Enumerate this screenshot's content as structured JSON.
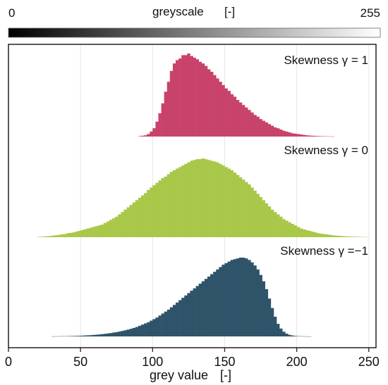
{
  "chart_data": {
    "type": "bar",
    "colorbar": {
      "title": "greyscale",
      "unit": "[-]",
      "min_label": "0",
      "max_label": "255",
      "range": [
        0,
        255
      ]
    },
    "xlabel": "grey value",
    "xunit": "[-]",
    "xlim": [
      0,
      255
    ],
    "xticks": [
      0,
      50,
      100,
      150,
      200,
      250
    ],
    "grid": "vertical",
    "series": [
      {
        "name": "Skewness γ = 1",
        "skewness": 1,
        "color": "#c8436a",
        "bin_width": 2,
        "x": [
          90,
          92,
          94,
          96,
          98,
          100,
          102,
          104,
          106,
          108,
          110,
          112,
          114,
          116,
          118,
          120,
          122,
          124,
          126,
          128,
          130,
          132,
          134,
          136,
          138,
          140,
          142,
          144,
          146,
          148,
          150,
          152,
          154,
          156,
          158,
          160,
          162,
          164,
          166,
          168,
          170,
          172,
          174,
          176,
          178,
          180,
          182,
          184,
          186,
          188,
          190,
          192,
          194,
          196,
          198,
          200,
          202,
          204,
          206,
          208,
          210,
          212,
          214,
          216,
          218,
          220,
          222,
          224
        ],
        "values": [
          0.5,
          1,
          1.5,
          3,
          6,
          10,
          18,
          28,
          40,
          54,
          66,
          79,
          88,
          92,
          94,
          98,
          98,
          100,
          97,
          95,
          93,
          90,
          88,
          85,
          81,
          78,
          74,
          70,
          66,
          62,
          58,
          55,
          51,
          48,
          44,
          41,
          38,
          35,
          32,
          29,
          26,
          24,
          21,
          19,
          17,
          15,
          13,
          11,
          10,
          8.5,
          7,
          6,
          5,
          4,
          3.5,
          3,
          2.5,
          2,
          1.5,
          1.2,
          1,
          0.8,
          0.6,
          0.5,
          0.4,
          0.3,
          0.2,
          0.1
        ]
      },
      {
        "name": "Skewness γ = 0",
        "skewness": 0,
        "color": "#a9c84a",
        "bin_width": 2,
        "x": [
          20,
          22,
          24,
          26,
          28,
          30,
          32,
          34,
          36,
          38,
          40,
          42,
          44,
          46,
          48,
          50,
          52,
          54,
          56,
          58,
          60,
          62,
          64,
          66,
          68,
          70,
          72,
          74,
          76,
          78,
          80,
          82,
          84,
          86,
          88,
          90,
          92,
          94,
          96,
          98,
          100,
          102,
          104,
          106,
          108,
          110,
          112,
          114,
          116,
          118,
          120,
          122,
          124,
          126,
          128,
          130,
          132,
          134,
          136,
          138,
          140,
          142,
          144,
          146,
          148,
          150,
          152,
          154,
          156,
          158,
          160,
          162,
          164,
          166,
          168,
          170,
          172,
          174,
          176,
          178,
          180,
          182,
          184,
          186,
          188,
          190,
          192,
          194,
          196,
          198,
          200,
          202,
          204,
          206,
          208,
          210,
          212,
          214,
          216,
          218,
          220,
          222,
          224,
          226,
          228,
          230,
          232,
          234,
          236,
          238,
          240,
          242,
          244,
          246,
          248
        ],
        "values": [
          0.5,
          0.7,
          1,
          1.2,
          1.5,
          2,
          2.5,
          3,
          3.5,
          4,
          5,
          5.5,
          6,
          7,
          8,
          9,
          10,
          11,
          12,
          13,
          14,
          15,
          16,
          18,
          20,
          22,
          24,
          26,
          29,
          32,
          35,
          38,
          41,
          44,
          47,
          50,
          53,
          56,
          60,
          63,
          66,
          69,
          72,
          75,
          77,
          80,
          83,
          85,
          87,
          89,
          91,
          93,
          95,
          97,
          98,
          99,
          99,
          100,
          99,
          98,
          97,
          96,
          95,
          93,
          91,
          89,
          87,
          85,
          82,
          79,
          76,
          73,
          70,
          67,
          63,
          59,
          55,
          51,
          47,
          43,
          39,
          35,
          32,
          29,
          26,
          23,
          21,
          19,
          17,
          15,
          13,
          11,
          10,
          9,
          8,
          7,
          6,
          5,
          4.5,
          4,
          3.5,
          3,
          2.5,
          2,
          1.8,
          1.5,
          1.2,
          1,
          0.8,
          0.7,
          0.6,
          0.5,
          0.4,
          0.3,
          0.2
        ]
      },
      {
        "name": "Skewness γ =−1",
        "skewness": -1,
        "color": "#2f5469",
        "bin_width": 2,
        "x": [
          30,
          32,
          34,
          36,
          38,
          40,
          42,
          44,
          46,
          48,
          50,
          52,
          54,
          56,
          58,
          60,
          62,
          64,
          66,
          68,
          70,
          72,
          74,
          76,
          78,
          80,
          82,
          84,
          86,
          88,
          90,
          92,
          94,
          96,
          98,
          100,
          102,
          104,
          106,
          108,
          110,
          112,
          114,
          116,
          118,
          120,
          122,
          124,
          126,
          128,
          130,
          132,
          134,
          136,
          138,
          140,
          142,
          144,
          146,
          148,
          150,
          152,
          154,
          156,
          158,
          160,
          162,
          164,
          166,
          168,
          170,
          172,
          174,
          176,
          178,
          180,
          182,
          184,
          186,
          188,
          190,
          192,
          194,
          196,
          198,
          200,
          202,
          204,
          206,
          208
        ],
        "values": [
          0.1,
          0.2,
          0.2,
          0.3,
          0.3,
          0.4,
          0.5,
          0.6,
          0.7,
          0.8,
          1,
          1.2,
          1.4,
          1.6,
          1.9,
          2.2,
          2.5,
          2.9,
          3.3,
          3.8,
          4.3,
          4.9,
          5.5,
          6.2,
          7,
          7.8,
          8.7,
          9.7,
          10.8,
          12,
          13.5,
          15,
          16.5,
          18,
          20,
          22,
          24,
          26.5,
          29,
          31.5,
          34,
          37,
          40,
          43,
          46,
          49,
          52,
          55,
          58,
          61,
          64,
          67,
          70,
          73,
          76,
          79,
          82,
          85,
          88,
          91,
          93,
          95,
          97,
          98,
          99,
          100,
          100,
          99,
          97,
          94,
          90,
          85,
          78,
          70,
          60,
          48,
          36,
          25,
          16,
          10,
          6,
          3.5,
          2,
          1.2,
          0.7,
          0.4,
          0.3,
          0.2,
          0.1,
          0.05
        ]
      }
    ]
  }
}
